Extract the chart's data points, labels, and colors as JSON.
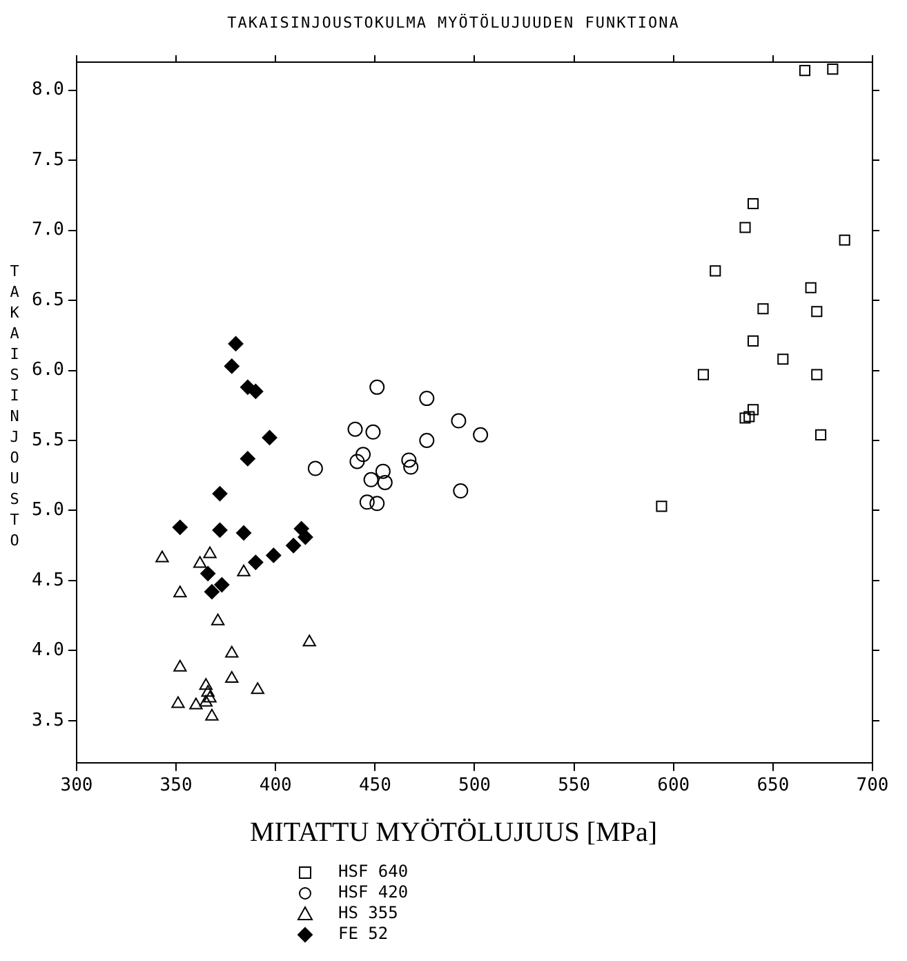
{
  "chart_data": {
    "type": "scatter",
    "title": "TAKAISINJOUSTOKULMA MYÖTÖLUJUUDEN FUNKTIONA",
    "xlabel": "MITATTU MYÖTÖLUJUUS [MPa]",
    "ylabel": "TAKAISINJOUSTO",
    "xlim": [
      300,
      700
    ],
    "xticks": [
      300,
      350,
      400,
      450,
      500,
      550,
      600,
      650,
      700
    ],
    "ylim": [
      3.2,
      8.2
    ],
    "yticks": [
      {
        "value": 3.5,
        "label": "3.5"
      },
      {
        "value": 4,
        "label": "4.0"
      },
      {
        "value": 4.5,
        "label": "4.5"
      },
      {
        "value": 5,
        "label": "5.0"
      },
      {
        "value": 5.5,
        "label": "5.5"
      },
      {
        "value": 6,
        "label": "6.0"
      },
      {
        "value": 6.5,
        "label": "6.5"
      },
      {
        "value": 7,
        "label": "7.0"
      },
      {
        "value": 7.5,
        "label": "7.5"
      },
      {
        "value": 8,
        "label": "8.0"
      }
    ],
    "grid": false,
    "legend": "bottom",
    "series": [
      {
        "name": "HSF 640",
        "color": "#000000",
        "marker": "square",
        "x": [
          666,
          680,
          640,
          636,
          686,
          621,
          669,
          672,
          645,
          640,
          655,
          615,
          672,
          640,
          636,
          638,
          674,
          594
        ],
        "values": [
          8.14,
          8.15,
          7.19,
          7.02,
          6.93,
          6.71,
          6.59,
          6.42,
          6.44,
          6.21,
          6.08,
          5.97,
          5.97,
          5.72,
          5.66,
          5.67,
          5.54,
          5.03
        ]
      },
      {
        "name": "HSF 420",
        "color": "#000000",
        "marker": "circle",
        "x": [
          451,
          476,
          440,
          449,
          492,
          503,
          420,
          476,
          444,
          441,
          454,
          455,
          448,
          467,
          468,
          446,
          451,
          493
        ],
        "values": [
          5.88,
          5.8,
          5.58,
          5.56,
          5.64,
          5.54,
          5.3,
          5.5,
          5.4,
          5.35,
          5.28,
          5.2,
          5.22,
          5.36,
          5.31,
          5.06,
          5.05,
          5.14
        ]
      },
      {
        "name": "HS 355",
        "color": "#000000",
        "marker": "triangle",
        "x": [
          343,
          367,
          352,
          362,
          384,
          371,
          417,
          378,
          352,
          378,
          365,
          366,
          367,
          391,
          351,
          360,
          368,
          365
        ],
        "values": [
          4.66,
          4.69,
          4.41,
          4.62,
          4.56,
          4.21,
          4.06,
          3.98,
          3.88,
          3.8,
          3.75,
          3.7,
          3.66,
          3.72,
          3.62,
          3.61,
          3.53,
          3.63
        ]
      },
      {
        "name": "FE 52",
        "color": "#000000",
        "marker": "diamond",
        "x": [
          380,
          378,
          386,
          390,
          397,
          386,
          372,
          352,
          372,
          384,
          413,
          415,
          409,
          390,
          399,
          366,
          373,
          368
        ],
        "values": [
          6.19,
          6.03,
          5.88,
          5.85,
          5.52,
          5.37,
          5.12,
          4.88,
          4.86,
          4.84,
          4.87,
          4.81,
          4.75,
          4.63,
          4.68,
          4.55,
          4.47,
          4.42
        ]
      }
    ]
  }
}
